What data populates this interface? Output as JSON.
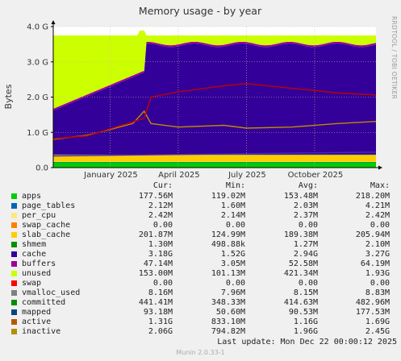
{
  "chart_data": {
    "type": "area",
    "title": "Memory usage - by year",
    "ylabel": "Bytes",
    "watermark": "RRDTOOL / TOBI OETIKER",
    "y_ticks": [
      "0.0",
      "1.0 G",
      "2.0 G",
      "3.0 G",
      "4.0 G"
    ],
    "y_tick_values": [
      0,
      1,
      2,
      3,
      4
    ],
    "ylim": [
      0,
      4
    ],
    "x_ticks": [
      "January 2025",
      "April 2025",
      "July 2025",
      "October 2025"
    ],
    "x_tick_months": [
      1,
      4,
      7,
      10
    ],
    "xlim_months": [
      -1.5,
      12.7
    ],
    "grid": true,
    "stack_units": "GB",
    "stack_order": [
      "apps",
      "page_tables",
      "per_cpu",
      "swap_cache",
      "slab_cache",
      "shmem",
      "cache",
      "buffers",
      "unused"
    ],
    "stack_avg_gb": {
      "apps": 0.1535,
      "page_tables": 0.002,
      "per_cpu": 0.0024,
      "swap_cache": 0,
      "slab_cache": 0.1894,
      "shmem": 0.0013,
      "cache": 2.94,
      "buffers": 0.0526,
      "unused": 0.4213
    },
    "line_series": [
      {
        "name": "committed",
        "color": "#4a28b4",
        "points": [
          [
            -1.5,
            0.33
          ],
          [
            12.7,
            0.44
          ]
        ]
      },
      {
        "name": "active",
        "color": "#c08a00",
        "points": [
          [
            -1.5,
            0.8
          ],
          [
            0,
            0.92
          ],
          [
            1,
            1.08
          ],
          [
            2,
            1.25
          ],
          [
            2.5,
            1.6
          ],
          [
            2.8,
            1.25
          ],
          [
            4,
            1.15
          ],
          [
            6,
            1.2
          ],
          [
            7,
            1.12
          ],
          [
            9,
            1.15
          ],
          [
            11,
            1.25
          ],
          [
            12.7,
            1.31
          ]
        ]
      },
      {
        "name": "inactive",
        "color": "#c00000",
        "points": [
          [
            -1.5,
            0.82
          ],
          [
            0,
            0.9
          ],
          [
            1.5,
            1.2
          ],
          [
            2.5,
            1.4
          ],
          [
            2.8,
            2.0
          ],
          [
            4,
            2.15
          ],
          [
            6,
            2.32
          ],
          [
            7,
            2.38
          ],
          [
            9,
            2.25
          ],
          [
            11,
            2.12
          ],
          [
            12.7,
            2.06
          ]
        ]
      }
    ]
  },
  "legend": {
    "headers": {
      "cur": "Cur:",
      "min": "Min:",
      "avg": "Avg:",
      "max": "Max:"
    },
    "rows": [
      {
        "name": "apps",
        "color": "#00cc00",
        "cur": "177.56M",
        "min": "119.02M",
        "avg": "153.48M",
        "max": "218.20M"
      },
      {
        "name": "page_tables",
        "color": "#0066b3",
        "cur": "2.12M",
        "min": "1.60M",
        "avg": "2.03M",
        "max": "4.21M"
      },
      {
        "name": "per_cpu",
        "color": "#ffe680",
        "cur": "2.42M",
        "min": "2.14M",
        "avg": "2.37M",
        "max": "2.42M"
      },
      {
        "name": "swap_cache",
        "color": "#ff8000",
        "cur": "0.00",
        "min": "0.00",
        "avg": "0.00",
        "max": "0.00"
      },
      {
        "name": "slab_cache",
        "color": "#ffcc00",
        "cur": "201.87M",
        "min": "124.99M",
        "avg": "189.38M",
        "max": "205.94M"
      },
      {
        "name": "shmem",
        "color": "#008f00",
        "cur": "1.30M",
        "min": "498.88k",
        "avg": "1.27M",
        "max": "2.10M"
      },
      {
        "name": "cache",
        "color": "#330099",
        "cur": "3.18G",
        "min": "1.52G",
        "avg": "2.94G",
        "max": "3.27G"
      },
      {
        "name": "buffers",
        "color": "#990099",
        "cur": "47.14M",
        "min": "3.05M",
        "avg": "52.58M",
        "max": "64.19M"
      },
      {
        "name": "unused",
        "color": "#ccff00",
        "cur": "153.00M",
        "min": "101.13M",
        "avg": "421.34M",
        "max": "1.93G"
      },
      {
        "name": "swap",
        "color": "#ff0000",
        "cur": "0.00",
        "min": "0.00",
        "avg": "0.00",
        "max": "0.00"
      },
      {
        "name": "vmalloc_used",
        "color": "#808080",
        "cur": "8.16M",
        "min": "7.96M",
        "avg": "8.15M",
        "max": "8.83M"
      },
      {
        "name": "committed",
        "color": "#008f00",
        "cur": "441.41M",
        "min": "348.33M",
        "avg": "414.63M",
        "max": "482.96M"
      },
      {
        "name": "mapped",
        "color": "#00487d",
        "cur": "93.18M",
        "min": "50.60M",
        "avg": "90.53M",
        "max": "177.53M"
      },
      {
        "name": "active",
        "color": "#b35a00",
        "cur": "1.31G",
        "min": "833.10M",
        "avg": "1.16G",
        "max": "1.69G"
      },
      {
        "name": "inactive",
        "color": "#b38f00",
        "cur": "2.06G",
        "min": "794.82M",
        "avg": "1.96G",
        "max": "2.45G"
      }
    ]
  },
  "last_update": "Last update:  Mon Dec 22 00:00:12 2025",
  "footer": "Munin 2.0.33-1"
}
